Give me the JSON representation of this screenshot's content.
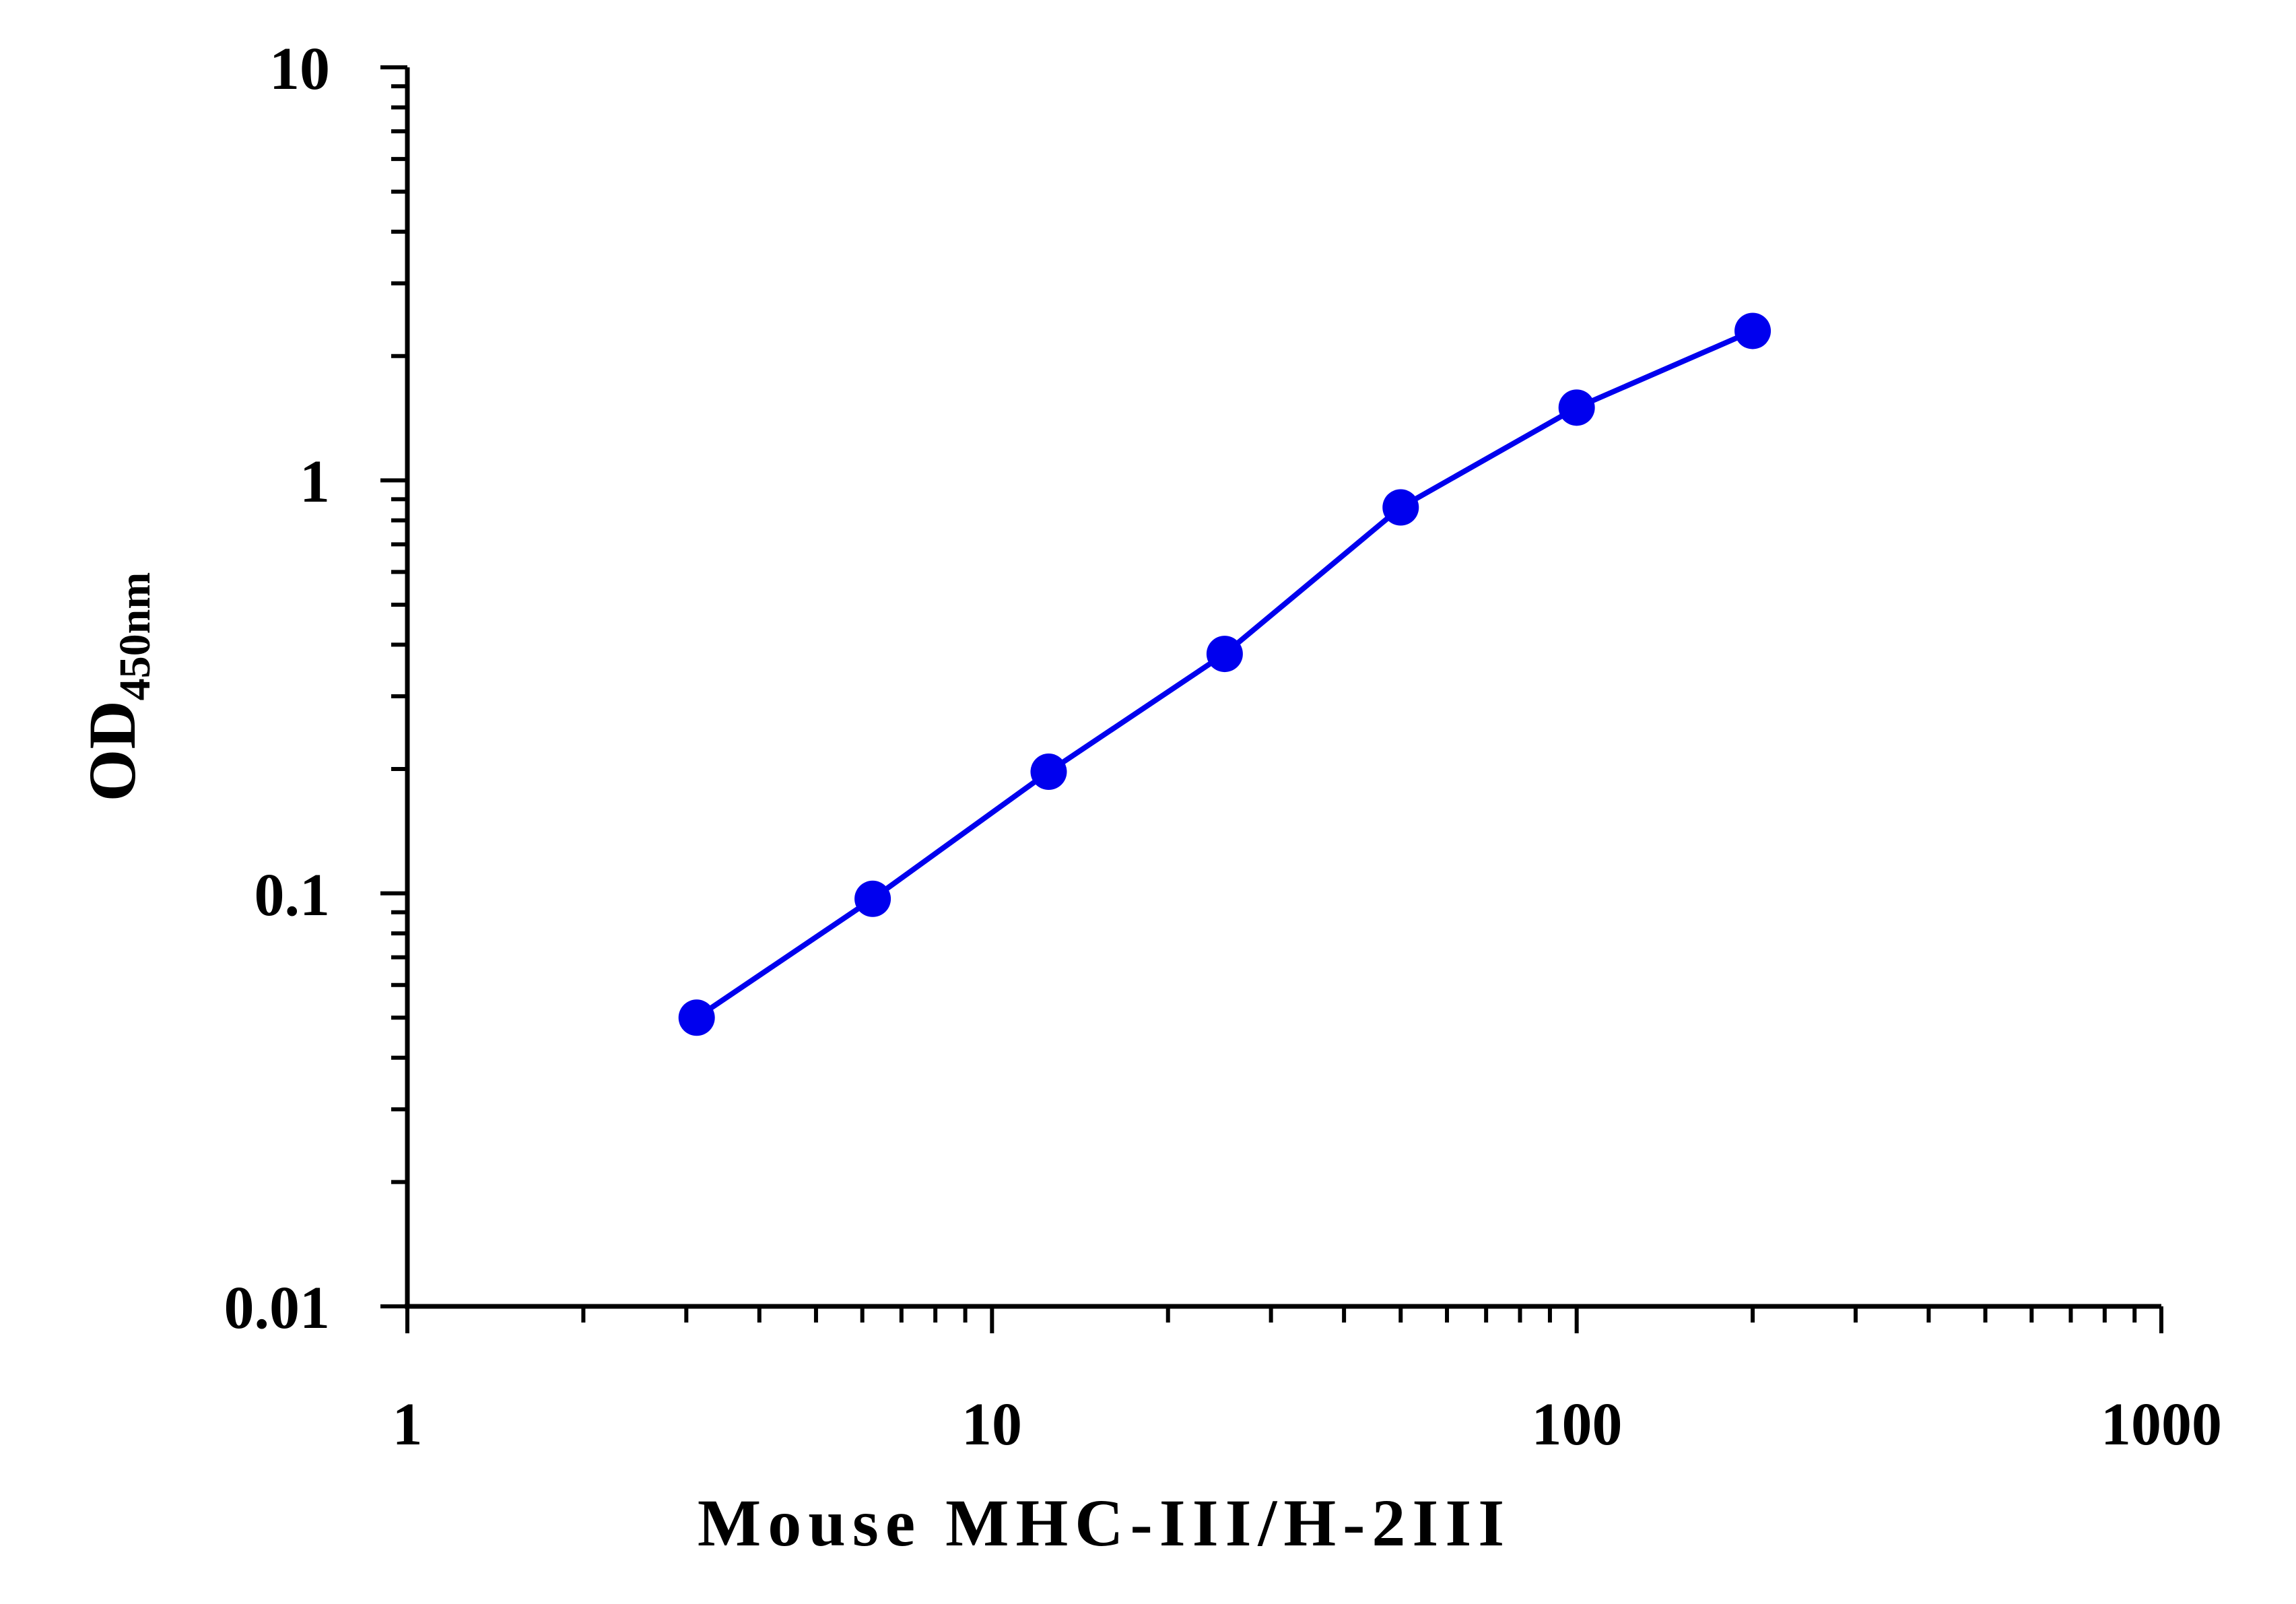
{
  "chart_data": {
    "type": "line",
    "xscale": "log",
    "yscale": "log",
    "xlim": [
      1,
      1000
    ],
    "ylim": [
      0.01,
      10
    ],
    "xlabel": "Mouse MHC-III/H-2III",
    "ylabel": {
      "main": "OD",
      "subscript": "450nm"
    },
    "x_ticks": [
      "1",
      "10",
      "100",
      "1000"
    ],
    "y_ticks": [
      "0.01",
      "0.1",
      "1",
      "10"
    ],
    "grid": false,
    "legend": "none",
    "color": "#0000ee",
    "series": [
      {
        "x": [
          3.125,
          6.25,
          12.5,
          25,
          50,
          100,
          200
        ],
        "y": [
          0.05,
          0.097,
          0.197,
          0.38,
          0.86,
          1.5,
          2.3
        ]
      }
    ]
  }
}
